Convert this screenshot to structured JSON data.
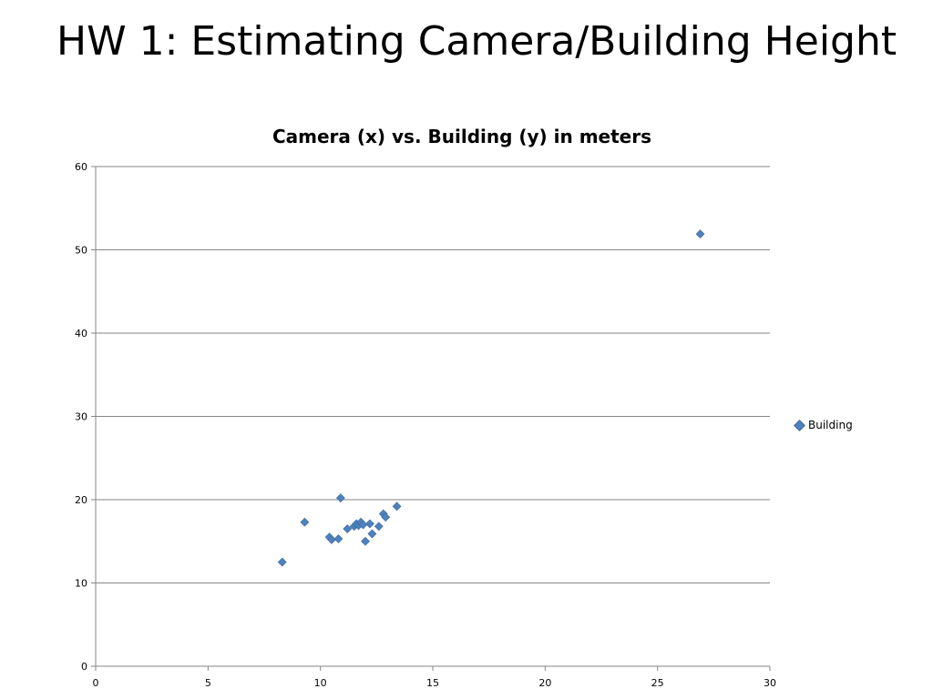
{
  "slide": {
    "title": "HW 1: Estimating Camera/Building Height"
  },
  "chart_data": {
    "type": "scatter",
    "title": "Camera (x) vs. Building (y) in meters",
    "xlabel": "",
    "ylabel": "",
    "xlim": [
      0,
      30
    ],
    "ylim": [
      0,
      60
    ],
    "x_ticks": [
      0,
      5,
      10,
      15,
      20,
      25,
      30
    ],
    "y_ticks": [
      0,
      10,
      20,
      30,
      40,
      50,
      60
    ],
    "grid": {
      "horizontal": true,
      "vertical": false
    },
    "legend_position": "right",
    "marker_color": "#4F81BD",
    "series": [
      {
        "name": "Building",
        "points": [
          {
            "x": 8.3,
            "y": 12.5
          },
          {
            "x": 9.3,
            "y": 17.3
          },
          {
            "x": 10.4,
            "y": 15.5
          },
          {
            "x": 10.5,
            "y": 15.2
          },
          {
            "x": 10.8,
            "y": 15.3
          },
          {
            "x": 10.9,
            "y": 20.2
          },
          {
            "x": 11.2,
            "y": 16.5
          },
          {
            "x": 11.5,
            "y": 16.8
          },
          {
            "x": 11.6,
            "y": 17.1
          },
          {
            "x": 11.7,
            "y": 16.9
          },
          {
            "x": 11.8,
            "y": 17.3
          },
          {
            "x": 11.9,
            "y": 17.0
          },
          {
            "x": 12.0,
            "y": 15.0
          },
          {
            "x": 12.2,
            "y": 17.1
          },
          {
            "x": 12.3,
            "y": 15.9
          },
          {
            "x": 12.6,
            "y": 16.8
          },
          {
            "x": 12.8,
            "y": 18.3
          },
          {
            "x": 12.9,
            "y": 17.9
          },
          {
            "x": 13.4,
            "y": 19.2
          },
          {
            "x": 26.9,
            "y": 51.9
          }
        ]
      }
    ]
  }
}
